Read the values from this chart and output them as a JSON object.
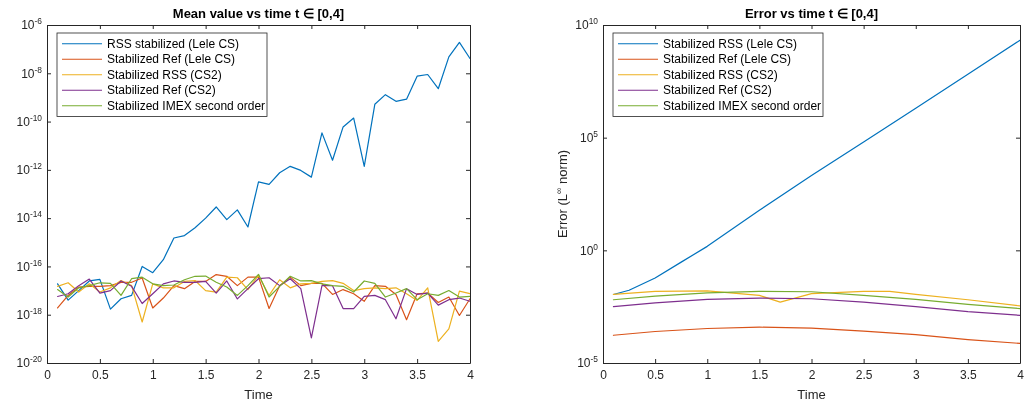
{
  "chart_data": [
    {
      "type": "line",
      "title": "Mean value vs time t ∈ [0,4]",
      "xlabel": "Time",
      "log": "y",
      "grid": false,
      "legend": "top left",
      "line_style": "solid",
      "marker": "none",
      "xlim": [
        0,
        4
      ],
      "xticks": [
        0,
        0.5,
        1,
        1.5,
        2,
        2.5,
        3,
        3.5,
        4
      ],
      "ylim": [
        1e-20,
        1e-06
      ],
      "yticks": [
        {
          "value": 1e-20,
          "label": "10$^{-20}$"
        },
        {
          "value": 1e-18,
          "label": "10$^{-18}$"
        },
        {
          "value": 1e-16,
          "label": "10$^{-16}$"
        },
        {
          "value": 1e-14,
          "label": "10$^{-14}$"
        },
        {
          "value": 1e-12,
          "label": "10$^{-12}$"
        },
        {
          "value": 1e-10,
          "label": "10$^{-10}$"
        },
        {
          "value": 1e-08,
          "label": "10$^{-8}$"
        },
        {
          "value": 1e-06,
          "label": "10$^{-6}$"
        }
      ],
      "x": [
        0.1,
        0.2,
        0.3,
        0.4,
        0.5,
        0.6,
        0.7,
        0.8,
        0.9,
        1.0,
        1.1,
        1.2,
        1.3,
        1.4,
        1.5,
        1.6,
        1.7,
        1.8,
        1.9,
        2.0,
        2.1,
        2.2,
        2.3,
        2.4,
        2.5,
        2.6,
        2.7,
        2.8,
        2.9,
        3.0,
        3.1,
        3.2,
        3.3,
        3.4,
        3.5,
        3.6,
        3.7,
        3.8,
        3.9,
        4.0
      ],
      "series": [
        {
          "name": "RSS stabilized (Lele CS)",
          "color": "#0072bd",
          "values": [
            1.9e-17,
            4e-18,
            1e-17,
            2.5e-17,
            2.9e-17,
            1.7e-18,
            4.6e-18,
            6.3e-18,
            1e-16,
            5.5e-17,
            1.9e-16,
            1.5e-15,
            1.9e-15,
            4e-15,
            1e-14,
            2.9e-14,
            8.7e-15,
            2.2e-14,
            4.3e-15,
            3.2e-13,
            2.5e-13,
            7.6e-13,
            1.4e-12,
            9.5e-13,
            5e-13,
            3.4e-11,
            2.5e-12,
            6e-11,
            1.4e-10,
            1.4e-12,
            5.2e-10,
            1.3e-09,
            6.9e-10,
            8.5e-10,
            7.6e-09,
            8.9e-09,
            2.3e-09,
            4.8e-08,
            1.9e-07,
            4.1e-08
          ]
        },
        {
          "name": "Stabilized Ref (Lele CS)",
          "color": "#d95319",
          "values": [
            1.9e-18,
            6.3e-18,
            1.4e-17,
            1.5e-17,
            1.5e-17,
            1.6e-17,
            2.2e-17,
            2.2e-17,
            3.3e-17,
            1.9e-18,
            4.9e-18,
            1.6e-17,
            1.2e-17,
            2.4e-17,
            2.4e-17,
            4.6e-17,
            3.9e-17,
            1.6e-17,
            3.6e-17,
            3.6e-17,
            1.8e-18,
            1.6e-17,
            3.6e-17,
            1.6e-17,
            2e-17,
            2e-17,
            6.9e-18,
            1.1e-17,
            7.4e-18,
            3.6e-18,
            1.6e-17,
            1.5e-17,
            6.9e-18,
            6.2e-19,
            7.4e-18,
            7.9e-18,
            3.2e-18,
            5.4e-18,
            9.3e-19,
            4.6e-18
          ]
        },
        {
          "name": "Stabilized RSS (CS2)",
          "color": "#edb120",
          "values": [
            1.5e-17,
            2.1e-17,
            8.7e-18,
            1.9e-17,
            8.7e-18,
            1.3e-17,
            2.6e-17,
            1.6e-17,
            5e-19,
            1.9e-17,
            1.3e-17,
            1.3e-17,
            2.4e-17,
            2.6e-17,
            1e-17,
            8.7e-18,
            3.6e-17,
            3.4e-17,
            1.1e-17,
            4.3e-17,
            6.3e-18,
            2.8e-17,
            1.3e-17,
            1.9e-17,
            2e-17,
            2.4e-17,
            2.6e-17,
            2e-17,
            1e-17,
            1.2e-17,
            1.3e-17,
            1.2e-17,
            1.3e-17,
            7.4e-18,
            3.9e-18,
            1.3e-17,
            7.9e-20,
            2.6e-19,
            9.5e-18,
            7.4e-18
          ]
        },
        {
          "name": "Stabilized Ref (CS2)",
          "color": "#7e2f8e",
          "values": [
            5.7e-18,
            7.4e-18,
            1.6e-17,
            3e-17,
            7.9e-18,
            1e-17,
            2.5e-17,
            1.5e-17,
            2.9e-18,
            7.4e-18,
            1.9e-17,
            2.5e-17,
            2.2e-17,
            2.2e-17,
            2.4e-17,
            7.9e-18,
            2.5e-17,
            4.5e-18,
            1.2e-17,
            3.1e-17,
            3.4e-17,
            1.6e-17,
            3.1e-17,
            1.2e-17,
            1.1e-19,
            1.6e-17,
            1.6e-17,
            1.8e-18,
            1.8e-18,
            5.7e-18,
            6.3e-18,
            4.2e-18,
            6.8e-19,
            1.2e-17,
            6.9e-18,
            7.9e-18,
            2.5e-18,
            4.2e-18,
            4.9e-18,
            3.6e-18
          ]
        },
        {
          "name": "Stabilized IMEX second order",
          "color": "#77ac30",
          "values": [
            1.1e-17,
            5.4e-18,
            1.3e-17,
            1.6e-17,
            2.1e-17,
            2e-17,
            6.3e-18,
            3.1e-17,
            3.6e-17,
            1.9e-17,
            1.6e-17,
            1.7e-17,
            2.8e-17,
            3.9e-17,
            4e-17,
            2.2e-17,
            1.4e-17,
            6.3e-18,
            1.6e-17,
            4.7e-17,
            5.4e-18,
            1.5e-17,
            3.9e-17,
            2.5e-17,
            2.6e-17,
            1.9e-17,
            1.6e-17,
            1.5e-17,
            8.7e-18,
            2.5e-17,
            2e-17,
            5.4e-18,
            7.9e-18,
            1.2e-17,
            4.2e-18,
            7.4e-18,
            6.3e-18,
            1e-17,
            5.4e-18,
            5.7e-18
          ]
        }
      ]
    },
    {
      "type": "line",
      "title": "Error vs time t ∈ [0,4]",
      "xlabel": "Time",
      "ylabel": "Error (L$^{∞}$ norm)",
      "log": "y",
      "grid": false,
      "legend": "top left",
      "line_style": "solid",
      "marker": "none",
      "xlim": [
        0,
        4
      ],
      "xticks": [
        0,
        0.5,
        1,
        1.5,
        2,
        2.5,
        3,
        3.5,
        4
      ],
      "ylim": [
        1e-05,
        10000000000.0
      ],
      "yticks": [
        {
          "value": 1e-05,
          "label": "10$^{-5}$"
        },
        {
          "value": 1,
          "label": "10$^{0}$"
        },
        {
          "value": 100000.0,
          "label": "10$^{5}$"
        },
        {
          "value": 10000000000.0,
          "label": "10$^{10}$"
        }
      ],
      "series": [
        {
          "name": "Stabilized RSS (Lele CS)",
          "color": "#0072bd",
          "x": [
            0.1,
            0.25,
            0.5,
            0.75,
            1.0,
            1.5,
            2.0,
            2.5,
            3.0,
            3.5,
            4.0
          ],
          "values": [
            0.011,
            0.017,
            0.059,
            0.3,
            1.5,
            60,
            2100,
            65000.0,
            2000000.0,
            66000000.0,
            2100000000.0
          ]
        },
        {
          "name": "Stabilized Ref (Lele CS)",
          "color": "#d95319",
          "x": [
            0.1,
            0.5,
            1.0,
            1.5,
            2.0,
            2.5,
            3.0,
            3.5,
            4.0
          ],
          "values": [
            0.00017,
            0.00025,
            0.00034,
            0.00039,
            0.00035,
            0.00026,
            0.00018,
            0.00011,
            7.4e-05
          ]
        },
        {
          "name": "Stabilized RSS (CS2)",
          "color": "#edb120",
          "x": [
            0.1,
            0.5,
            1.0,
            1.5,
            1.7,
            2.0,
            2.5,
            2.75,
            3.0,
            3.5,
            4.0
          ],
          "values": [
            0.011,
            0.015,
            0.016,
            0.01,
            0.005,
            0.012,
            0.015,
            0.015,
            0.011,
            0.0064,
            0.0034
          ]
        },
        {
          "name": "Stabilized Ref (CS2)",
          "color": "#7e2f8e",
          "x": [
            0.1,
            0.5,
            1.0,
            1.5,
            2.0,
            2.5,
            3.0,
            3.5,
            4.0
          ],
          "values": [
            0.0032,
            0.0047,
            0.0066,
            0.0076,
            0.0071,
            0.005,
            0.0032,
            0.0019,
            0.0013
          ]
        },
        {
          "name": "Stabilized IMEX second order",
          "color": "#77ac30",
          "x": [
            0.1,
            0.5,
            1.0,
            1.5,
            2.0,
            2.5,
            3.0,
            3.5,
            4.0
          ],
          "values": [
            0.0064,
            0.0093,
            0.013,
            0.015,
            0.0145,
            0.01,
            0.0066,
            0.004,
            0.0026
          ]
        }
      ]
    }
  ]
}
